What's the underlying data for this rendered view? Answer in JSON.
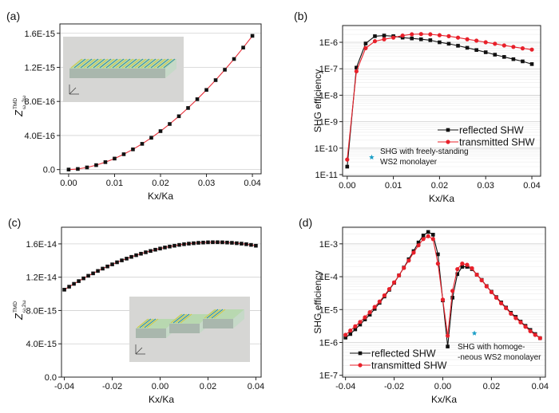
{
  "chart_data": [
    {
      "panel": "(a)",
      "type": "line",
      "xlabel": "Kx/Ka",
      "ylabel": {
        "base": "Z",
        "sup": "TMD",
        "sub": "ω, 2ω"
      },
      "xlim": [
        -0.0019,
        0.0419
      ],
      "ylim": [
        -5e-17,
        1.71e-15
      ],
      "yscale": "linear",
      "xticks": [
        0.0,
        0.01,
        0.02,
        0.03,
        0.04
      ],
      "xtick_labels": [
        "0.00",
        "0.01",
        "0.02",
        "0.03",
        "0.04"
      ],
      "yticks": [
        0,
        4e-16,
        8e-16,
        1.2e-15,
        1.6e-15
      ],
      "ytick_labels": [
        "0.0",
        "4.0E-16",
        "8.0E-16",
        "1.2E-15",
        "1.6E-15"
      ],
      "grid": true,
      "inset": "grating-illustration-connected",
      "series": [
        {
          "marker": "square",
          "line_color": "#e8303a",
          "marker_color": "#111111",
          "x": [
            0,
            0.002,
            0.004,
            0.006,
            0.008,
            0.01,
            0.012,
            0.014,
            0.016,
            0.018,
            0.02,
            0.022,
            0.024,
            0.026,
            0.028,
            0.03,
            0.032,
            0.034,
            0.036,
            0.038,
            0.04
          ],
          "y": [
            0,
            7e-18,
            2.5e-17,
            5.2e-17,
            8.7e-17,
            1.29e-16,
            1.8e-16,
            2.37e-16,
            3.02e-16,
            3.73e-16,
            4.51e-16,
            5.35e-16,
            6.26e-16,
            7.23e-16,
            8.26e-16,
            9.35e-16,
            1.05e-15,
            1.172e-15,
            1.298e-15,
            1.432e-15,
            1.57e-15
          ]
        }
      ]
    },
    {
      "panel": "(b)",
      "type": "line",
      "xlabel": "Kx/Ka",
      "ylabel": "SHG efficiency",
      "xlim": [
        -0.001,
        0.0419
      ],
      "ylim": [
        8.7e-12,
        4.3e-06
      ],
      "yscale": "log",
      "xticks": [
        0.0,
        0.01,
        0.02,
        0.03,
        0.04
      ],
      "xtick_labels": [
        "0.00",
        "0.01",
        "0.02",
        "0.03",
        "0.04"
      ],
      "yticks": [
        1e-11,
        1e-10,
        1e-09,
        1e-08,
        1e-07,
        1e-06
      ],
      "ytick_labels": [
        "1E-11",
        "1E-10",
        "1E-9",
        "1E-8",
        "1E-7",
        "1E-6"
      ],
      "grid": true,
      "legend": "center-right",
      "series": [
        {
          "name": "reflected SHW",
          "marker": "square",
          "color": "#111111",
          "x": [
            0,
            0.002,
            0.004,
            0.006,
            0.008,
            0.01,
            0.012,
            0.014,
            0.016,
            0.018,
            0.02,
            0.022,
            0.024,
            0.026,
            0.028,
            0.03,
            0.032,
            0.034,
            0.036,
            0.038,
            0.04
          ],
          "y": [
            2e-11,
            1.1e-07,
            9e-07,
            1.7e-06,
            1.8e-06,
            1.7e-06,
            1.5e-06,
            1.4e-06,
            1.3e-06,
            1.2e-06,
            1e-06,
            8.8e-07,
            7.4e-07,
            6.2e-07,
            5.1e-07,
            4.2e-07,
            3.4e-07,
            2.8e-07,
            2.3e-07,
            1.9e-07,
            1.5e-07
          ]
        },
        {
          "name": "transmitted SHW",
          "marker": "circle",
          "color": "#e8202a",
          "x": [
            0,
            0.002,
            0.004,
            0.006,
            0.008,
            0.01,
            0.012,
            0.014,
            0.016,
            0.018,
            0.02,
            0.022,
            0.024,
            0.026,
            0.028,
            0.03,
            0.032,
            0.034,
            0.036,
            0.038,
            0.04
          ],
          "y": [
            3.7e-11,
            8e-08,
            6e-07,
            1.1e-06,
            1.3e-06,
            1.5e-06,
            1.8e-06,
            2e-06,
            2.05e-06,
            2e-06,
            1.85e-06,
            1.7e-06,
            1.5e-06,
            1.3e-06,
            1.15e-06,
            1e-06,
            8.8e-07,
            7.6e-07,
            6.7e-07,
            5.9e-07,
            5.3e-07
          ]
        }
      ],
      "annotation": {
        "marker": "star",
        "color": "#1fa0c8",
        "x": 0.0053,
        "y": 4.5e-11,
        "lines": [
          "SHG with freely-standing",
          "WS2 monolayer"
        ]
      }
    },
    {
      "panel": "(c)",
      "type": "line",
      "xlabel": "Kx/Ka",
      "ylabel": {
        "base": "Z",
        "sup": "TMD",
        "sub": "ω,2ω"
      },
      "xlim": [
        -0.0412,
        0.0422
      ],
      "ylim": [
        0,
        1.8e-14
      ],
      "yscale": "linear",
      "xticks": [
        -0.04,
        -0.02,
        0.0,
        0.02,
        0.04
      ],
      "xtick_labels": [
        "-0.04",
        "-0.02",
        "0.00",
        "0.02",
        "0.04"
      ],
      "yticks": [
        0,
        4e-15,
        8e-15,
        1.2e-14,
        1.6e-14
      ],
      "ytick_labels": [
        "0.0",
        "4.0E-15",
        "8.0E-15",
        "1.2E-14",
        "1.6E-14"
      ],
      "grid": true,
      "inset": "grating-illustration-separated",
      "series": [
        {
          "marker": "square",
          "line_color": "#e8303a",
          "marker_color": "#111111",
          "x": [
            -0.04,
            -0.038,
            -0.036,
            -0.034,
            -0.032,
            -0.03,
            -0.028,
            -0.026,
            -0.024,
            -0.022,
            -0.02,
            -0.018,
            -0.016,
            -0.014,
            -0.012,
            -0.01,
            -0.008,
            -0.006,
            -0.004,
            -0.002,
            0,
            0.002,
            0.004,
            0.006,
            0.008,
            0.01,
            0.012,
            0.014,
            0.016,
            0.018,
            0.02,
            0.022,
            0.024,
            0.026,
            0.028,
            0.03,
            0.032,
            0.034,
            0.036,
            0.038,
            0.04
          ],
          "y": [
            1.05e-14,
            1.086e-14,
            1.12e-14,
            1.153e-14,
            1.186e-14,
            1.217e-14,
            1.246e-14,
            1.275e-14,
            1.303e-14,
            1.329e-14,
            1.354e-14,
            1.379e-14,
            1.402e-14,
            1.423e-14,
            1.444e-14,
            1.464e-14,
            1.482e-14,
            1.499e-14,
            1.515e-14,
            1.53e-14,
            1.544e-14,
            1.557e-14,
            1.568e-14,
            1.578e-14,
            1.588e-14,
            1.596e-14,
            1.603e-14,
            1.608e-14,
            1.613e-14,
            1.616e-14,
            1.619e-14,
            1.62e-14,
            1.62e-14,
            1.619e-14,
            1.616e-14,
            1.613e-14,
            1.608e-14,
            1.603e-14,
            1.596e-14,
            1.588e-14,
            1.578e-14
          ]
        }
      ]
    },
    {
      "panel": "(d)",
      "type": "line",
      "xlabel": "Kx/Ka",
      "ylabel": "SHG efficiency",
      "xlim": [
        -0.0412,
        0.0422
      ],
      "ylim": [
        8.8e-08,
        0.0032
      ],
      "yscale": "log",
      "xticks": [
        -0.04,
        -0.02,
        0.0,
        0.02,
        0.04
      ],
      "xtick_labels": [
        "-0.04",
        "-0.02",
        "0.00",
        "0.02",
        "0.04"
      ],
      "yticks": [
        1e-07,
        1e-06,
        1e-05,
        0.0001,
        0.001
      ],
      "ytick_labels": [
        "1E-7",
        "1E-6",
        "1E-5",
        "1E-4",
        "1E-3"
      ],
      "grid": true,
      "legend": "bottom-left",
      "series": [
        {
          "name": "reflected SHW",
          "marker": "square",
          "color": "#111111",
          "x": [
            -0.04,
            -0.038,
            -0.036,
            -0.034,
            -0.032,
            -0.03,
            -0.028,
            -0.026,
            -0.024,
            -0.022,
            -0.02,
            -0.018,
            -0.016,
            -0.014,
            -0.012,
            -0.01,
            -0.008,
            -0.006,
            -0.004,
            -0.002,
            0,
            0.002,
            0.004,
            0.006,
            0.008,
            0.01,
            0.012,
            0.014,
            0.016,
            0.018,
            0.02,
            0.022,
            0.024,
            0.026,
            0.028,
            0.03,
            0.032,
            0.034,
            0.036,
            0.038,
            0.04
          ],
          "y": [
            1.4e-06,
            1.8e-06,
            2.5e-06,
            3.5e-06,
            5e-06,
            7e-06,
            1.05e-05,
            1.6e-05,
            2.5e-05,
            4e-05,
            6.5e-05,
            0.00011,
            0.00019,
            0.00034,
            0.0006,
            0.0011,
            0.0018,
            0.0023,
            0.0019,
            0.00048,
            1.9e-05,
            7.5e-07,
            2.3e-05,
            0.00012,
            0.0002,
            0.0002,
            0.00017,
            0.000115,
            8e-05,
            5.2e-05,
            3.5e-05,
            2.4e-05,
            1.65e-05,
            1.15e-05,
            8e-06,
            6e-06,
            4.3e-06,
            3.2e-06,
            2.4e-06,
            1.8e-06,
            1.35e-06
          ]
        },
        {
          "name": "transmitted SHW",
          "marker": "circle",
          "color": "#e8202a",
          "x": [
            -0.04,
            -0.038,
            -0.036,
            -0.034,
            -0.032,
            -0.03,
            -0.028,
            -0.026,
            -0.024,
            -0.022,
            -0.02,
            -0.018,
            -0.016,
            -0.014,
            -0.012,
            -0.01,
            -0.008,
            -0.006,
            -0.004,
            -0.002,
            0,
            0.002,
            0.004,
            0.006,
            0.008,
            0.01,
            0.012,
            0.014,
            0.016,
            0.018,
            0.02,
            0.022,
            0.024,
            0.026,
            0.028,
            0.03,
            0.032,
            0.034,
            0.036,
            0.038,
            0.04
          ],
          "y": [
            1.7e-06,
            2.3e-06,
            3.1e-06,
            4.2e-06,
            5.8e-06,
            8.3e-06,
            1.2e-05,
            1.75e-05,
            2.7e-05,
            4.2e-05,
            6.7e-05,
            0.00011,
            0.000185,
            0.00031,
            0.00054,
            0.0009,
            0.0014,
            0.0017,
            0.0014,
            0.00025,
            2e-05,
            1.6e-06,
            3.7e-05,
            0.00017,
            0.00025,
            0.00023,
            0.00018,
            0.000115,
            7.8e-05,
            5.1e-05,
            3.4e-05,
            2.3e-05,
            1.55e-05,
            1.1e-05,
            7.5e-06,
            5.5e-06,
            4.1e-06,
            3e-06,
            2.2e-06,
            1.7e-06,
            1.35e-06
          ]
        }
      ],
      "annotation": {
        "marker": "star",
        "color": "#1fa0c8",
        "x": 0.013,
        "y": 1.9e-06,
        "lines": [
          "SHG with homoge-",
          "-neous WS2 monolayer"
        ]
      }
    }
  ]
}
